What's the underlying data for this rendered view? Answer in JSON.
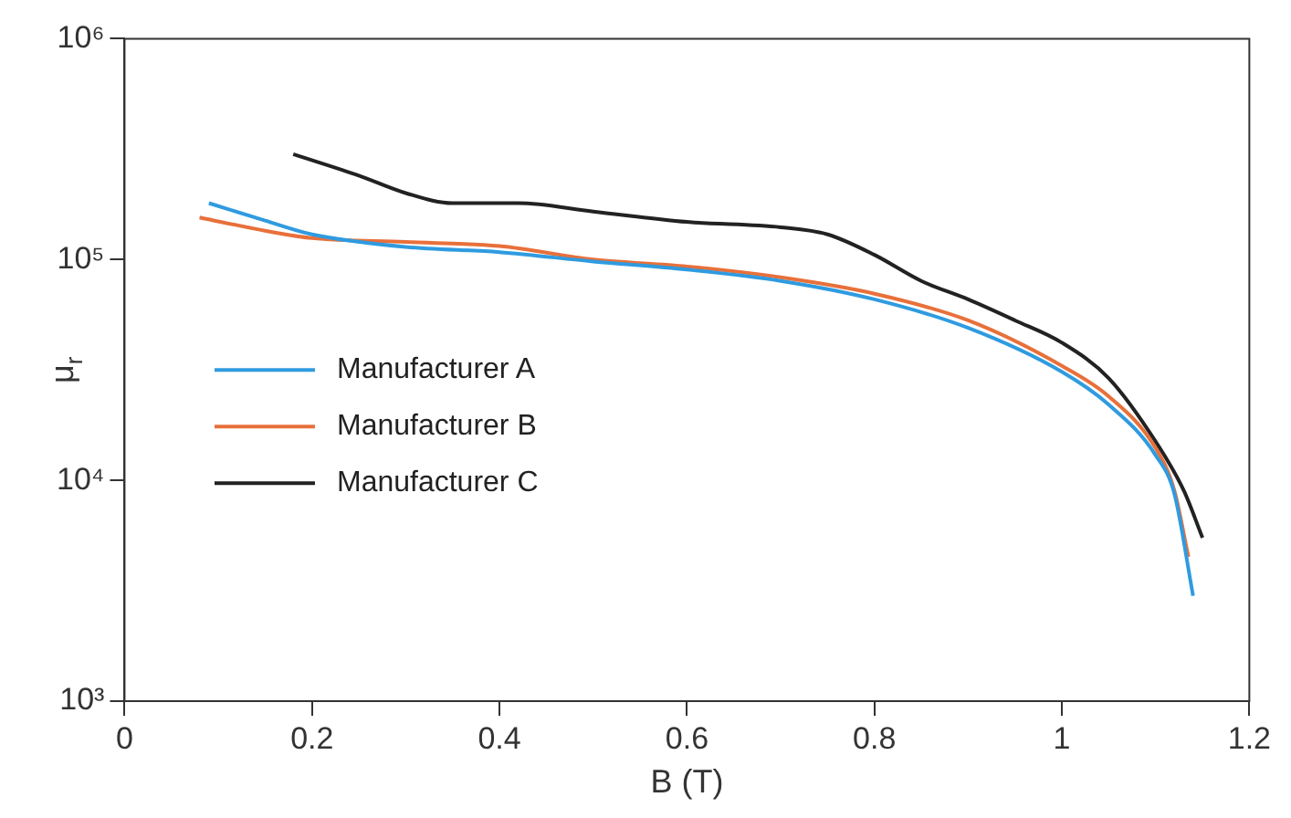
{
  "chart_data": {
    "type": "line",
    "xlabel": "B (T)",
    "ylabel": "μ$_{r}$",
    "log": "y",
    "grid": false,
    "legend": "left",
    "marker": "none",
    "line_style": "solid",
    "xlim": [
      0,
      1.2
    ],
    "xticks": [
      0,
      0.2,
      0.4,
      0.6,
      0.8,
      1,
      1.2
    ],
    "ylim": [
      1000,
      1000000
    ],
    "yticks": [
      {
        "value": 1000,
        "label": "10³"
      },
      {
        "value": 10000,
        "label": "10⁴"
      },
      {
        "value": 100000,
        "label": "10⁵"
      },
      {
        "value": 1000000,
        "label": "10⁶"
      }
    ],
    "series": [
      {
        "name": "Manufacturer A",
        "color": "#2f9be0",
        "x": [
          0.09,
          0.15,
          0.2,
          0.3,
          0.4,
          0.5,
          0.6,
          0.7,
          0.8,
          0.9,
          1.0,
          1.05,
          1.1,
          1.12,
          1.14
        ],
        "values": [
          180000,
          150000,
          130000,
          114000,
          108000,
          98000,
          90000,
          80000,
          66000,
          49000,
          31000,
          22000,
          13000,
          8700,
          3000
        ]
      },
      {
        "name": "Manufacturer B",
        "color": "#e8703a",
        "x": [
          0.08,
          0.15,
          0.2,
          0.3,
          0.4,
          0.5,
          0.6,
          0.7,
          0.8,
          0.9,
          1.0,
          1.05,
          1.1,
          1.12,
          1.135
        ],
        "values": [
          155000,
          135000,
          125000,
          120000,
          115000,
          100000,
          93000,
          83000,
          70000,
          53000,
          33000,
          24000,
          14000,
          9000,
          4500
        ]
      },
      {
        "name": "Manufacturer C",
        "color": "#222222",
        "x": [
          0.18,
          0.25,
          0.3,
          0.35,
          0.42,
          0.5,
          0.6,
          0.7,
          0.75,
          0.8,
          0.85,
          0.9,
          0.95,
          1.0,
          1.05,
          1.1,
          1.13,
          1.15
        ],
        "values": [
          300000,
          240000,
          200000,
          180000,
          180000,
          165000,
          148000,
          140000,
          130000,
          105000,
          80000,
          66000,
          53000,
          42000,
          29000,
          15000,
          9000,
          5500
        ]
      }
    ]
  }
}
